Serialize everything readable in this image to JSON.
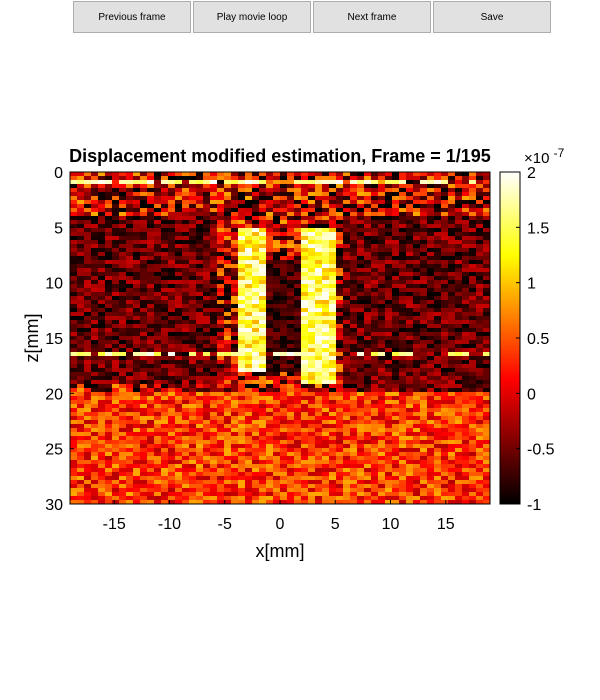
{
  "toolbar": {
    "previous_label": "Previous frame",
    "play_label": "Play movie loop",
    "next_label": "Next frame",
    "save_label": "Save"
  },
  "chart_data": {
    "type": "heatmap",
    "title": "Displacement modified estimation, Frame = 1/195",
    "xlabel": "x[mm]",
    "ylabel": "z[mm]",
    "xlim": [
      -19,
      19
    ],
    "ylim": [
      30,
      0
    ],
    "x_ticks": [
      -15,
      -10,
      -5,
      0,
      5,
      10,
      15
    ],
    "y_ticks": [
      0,
      5,
      10,
      15,
      20,
      25,
      30
    ],
    "colorbar": {
      "colormap": "hot",
      "min": -1,
      "max": 2,
      "ticks": [
        2,
        1.5,
        1,
        0.5,
        0,
        -0.5,
        -1
      ],
      "multiplier": "×10",
      "exponent": "-7"
    },
    "features": [
      {
        "description": "bright vertical band",
        "x_range": [
          -4,
          -1
        ],
        "z_range": [
          5,
          18
        ]
      },
      {
        "description": "bright vertical band",
        "x_range": [
          2,
          5
        ],
        "z_range": [
          5,
          19
        ]
      },
      {
        "description": "dark region",
        "x_range": [
          -19,
          -6
        ],
        "z_range": [
          4,
          19
        ]
      },
      {
        "description": "dark region",
        "x_range": [
          6,
          19
        ],
        "z_range": [
          4,
          20
        ]
      },
      {
        "description": "dark central column",
        "x_range": [
          -1,
          2
        ],
        "z_range": [
          8,
          18
        ]
      },
      {
        "description": "bright horizontal boundary",
        "z": 16.5
      },
      {
        "description": "bright horizontal line near top",
        "z": 1
      }
    ]
  }
}
